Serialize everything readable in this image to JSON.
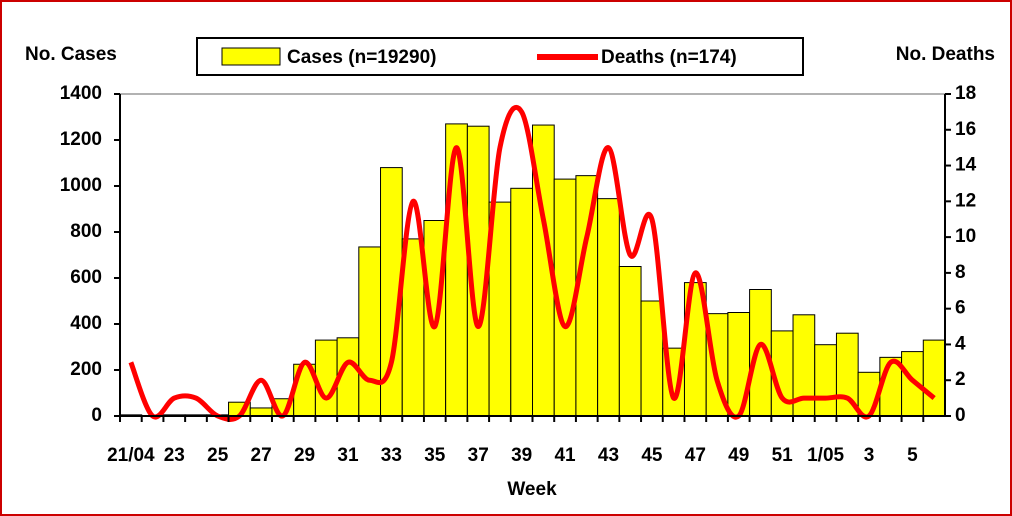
{
  "chart_data": {
    "type": "bar-line",
    "y_label": "No. Cases",
    "y2_label": "No. Deaths",
    "x_label": "Week",
    "categories": [
      "21/04",
      null,
      "23",
      null,
      "25",
      null,
      "27",
      null,
      "29",
      null,
      "31",
      null,
      "33",
      null,
      "35",
      null,
      "37",
      null,
      "39",
      null,
      "41",
      null,
      "43",
      null,
      "45",
      null,
      "47",
      null,
      "49",
      null,
      "51",
      null,
      "1/05",
      null,
      "3",
      null,
      "5",
      null
    ],
    "series": [
      {
        "name": "Cases (n=19290)",
        "type": "bar",
        "color": "#ffff00",
        "values": [
          5,
          0,
          5,
          5,
          5,
          60,
          35,
          75,
          225,
          330,
          340,
          735,
          1080,
          770,
          850,
          1270,
          1260,
          930,
          990,
          1265,
          1030,
          1045,
          945,
          650,
          500,
          295,
          580,
          445,
          450,
          550,
          370,
          440,
          310,
          360,
          190,
          255,
          280,
          330
        ]
      },
      {
        "name": "Deaths (n=174)",
        "type": "line",
        "axis": "y2",
        "color": "#ff0000",
        "values": [
          3,
          0,
          1,
          1,
          0,
          0,
          2,
          0,
          3,
          1,
          3,
          2,
          3,
          12,
          5,
          15,
          5,
          15,
          17,
          11,
          5,
          10,
          15,
          9,
          11,
          1,
          8,
          2,
          0,
          4,
          1,
          1,
          1,
          1,
          0,
          3,
          2,
          1
        ]
      }
    ],
    "ylim": [
      0,
      1400
    ],
    "yticks": [
      0,
      200,
      400,
      600,
      800,
      1000,
      1200,
      1400
    ],
    "y2lim": [
      0,
      18
    ],
    "y2ticks": [
      0,
      2,
      4,
      6,
      8,
      10,
      12,
      14,
      16,
      18
    ]
  }
}
